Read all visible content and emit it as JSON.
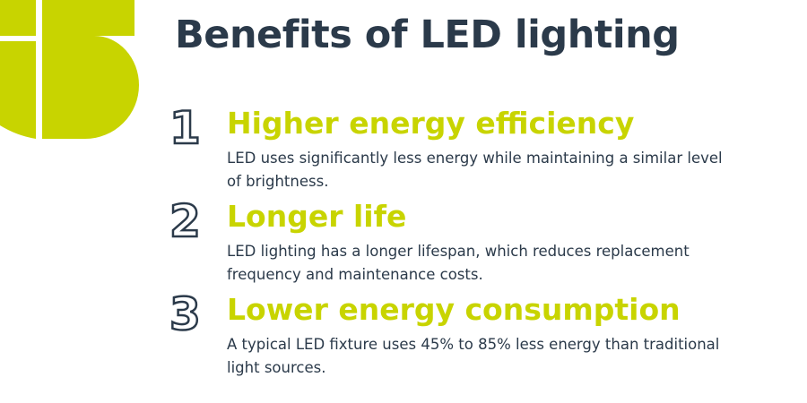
{
  "title": "Benefits of LED lighting",
  "items": [
    {
      "number": "1",
      "heading": "Higher energy efficiency",
      "text": "LED uses significantly less energy while maintaining a similar level of brightness."
    },
    {
      "number": "2",
      "heading": "Longer life",
      "text": "LED lighting has a longer lifespan, which reduces replacement frequency and maintenance costs."
    },
    {
      "number": "3",
      "heading": "Lower energy consumption",
      "text": "A typical LED fixture uses 45% to 85% less energy than traditional light sources."
    }
  ]
}
